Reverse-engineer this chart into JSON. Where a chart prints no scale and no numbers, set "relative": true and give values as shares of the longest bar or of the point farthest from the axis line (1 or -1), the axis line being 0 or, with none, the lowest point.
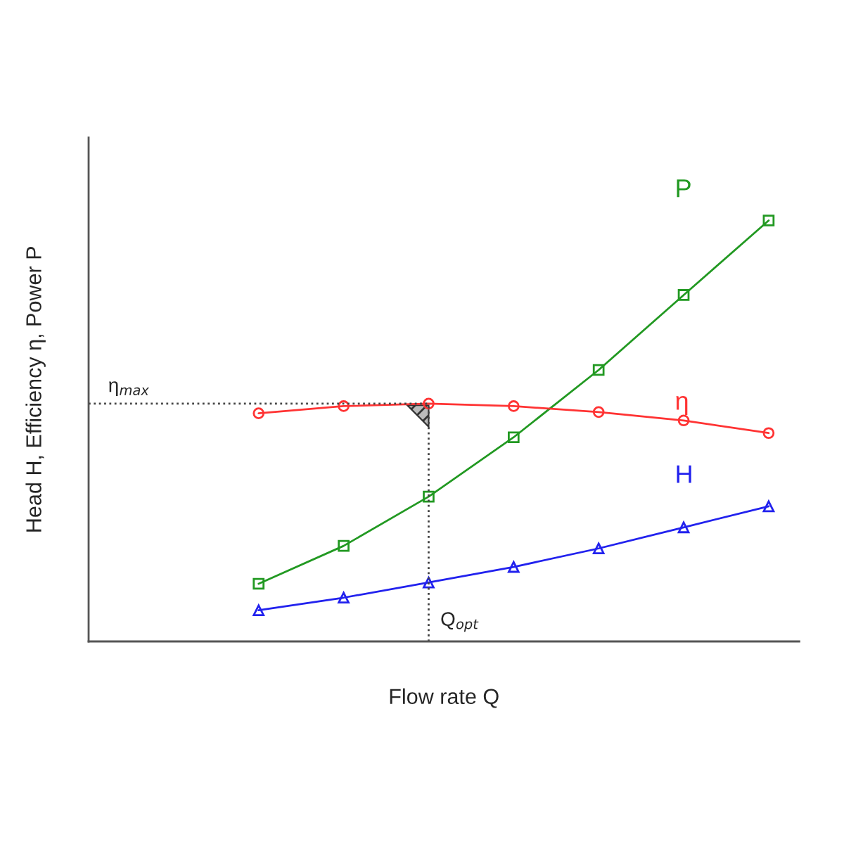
{
  "chart_data": {
    "type": "line",
    "relative": true,
    "xlabel": "Flow rate Q",
    "ylabel": "Head H, Efficiency η, Power P",
    "categories": [
      null,
      null,
      null,
      null,
      null,
      null,
      null,
      null,
      null
    ],
    "series": [
      {
        "name": "P",
        "color": "#229922",
        "marker": "square",
        "values": [
          null,
          null,
          0.137,
          0.227,
          0.344,
          0.485,
          0.645,
          0.823,
          1
        ]
      },
      {
        "name": "η",
        "color": "#ff3333",
        "marker": "circle",
        "values": [
          null,
          null,
          0.542,
          0.559,
          0.565,
          0.559,
          0.545,
          0.525,
          0.495
        ]
      },
      {
        "name": "H",
        "color": "#2222ee",
        "marker": "triangle",
        "values": [
          null,
          null,
          0.074,
          0.104,
          0.14,
          0.177,
          0.221,
          0.271,
          0.321
        ]
      }
    ],
    "ref_lines": [
      {
        "axis": "y",
        "value": 0.565,
        "label": "η$_{max}$",
        "line_style": "dotted",
        "color": "#444444"
      }
    ],
    "annotations": [
      "Q$_{opt}$"
    ],
    "legend": false,
    "line_style": "solid"
  }
}
